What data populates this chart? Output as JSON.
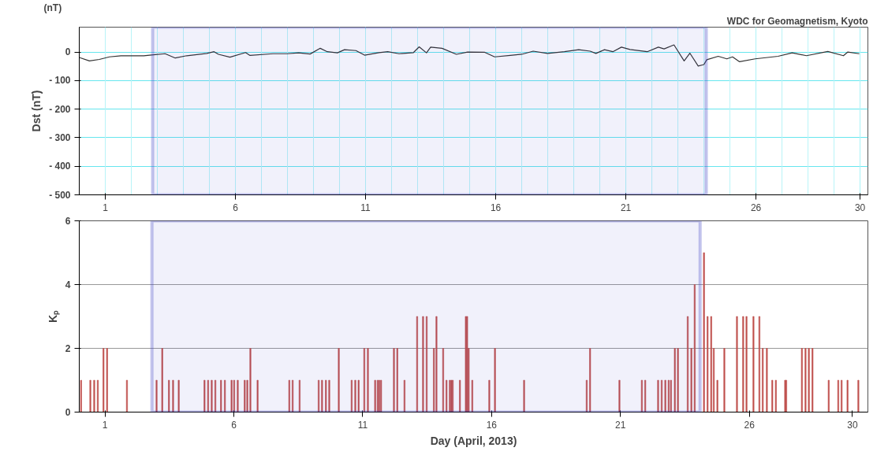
{
  "chart_data": [
    {
      "type": "line",
      "ylabel": "Dst (nT)",
      "annotations": [
        "WDC for Geomagnetism, Kyoto",
        "(nT)"
      ],
      "xlim": [
        0,
        30.3
      ],
      "ylim": [
        -500,
        87
      ],
      "xticks": [
        1,
        6,
        11,
        16,
        21,
        26,
        30
      ],
      "yticks": [
        0,
        {
          "value": -100,
          "label": "- 100"
        },
        {
          "value": -200,
          "label": "- 200"
        },
        {
          "value": -300,
          "label": "- 300"
        },
        {
          "value": -400,
          "label": "- 400"
        },
        {
          "value": -500,
          "label": "- 500"
        }
      ],
      "grid": true,
      "marker": "none",
      "line_style": "solid",
      "bands": [
        {
          "axis": "x",
          "from": 2.82,
          "to": 24.09,
          "color": "#3b3fc4"
        }
      ],
      "series": [
        {
          "color": "#333333",
          "x": [
            0.0,
            0.39,
            0.77,
            1.16,
            1.6,
            2.48,
            2.92,
            3.3,
            3.69,
            4.13,
            4.9,
            5.18,
            5.35,
            5.79,
            6.39,
            6.56,
            7.44,
            7.99,
            8.43,
            8.87,
            9.26,
            9.53,
            9.92,
            10.19,
            10.63,
            10.96,
            11.52,
            11.85,
            12.29,
            12.84,
            13.06,
            13.34,
            13.5,
            13.94,
            14.49,
            14.92,
            15.58,
            15.96,
            16.56,
            17.0,
            17.44,
            17.99,
            18.64,
            19.19,
            19.63,
            19.85,
            20.18,
            20.5,
            20.83,
            21.16,
            21.82,
            22.25,
            22.47,
            22.85,
            23.24,
            23.46,
            23.78,
            24.0,
            24.11,
            24.55,
            24.88,
            25.1,
            25.37,
            25.97,
            26.85,
            27.39,
            27.94,
            28.76,
            29.36,
            29.53,
            29.97
          ],
          "values": [
            -19,
            -31,
            -26,
            -17,
            -13,
            -13,
            -9,
            -6,
            -21,
            -13,
            -5,
            1,
            -8,
            -18,
            -2,
            -12,
            -6,
            -6,
            -3,
            -7,
            13,
            1,
            -3,
            8,
            5,
            -11,
            -2,
            1,
            -6,
            -2,
            18,
            -3,
            17,
            13,
            -8,
            0,
            -1,
            -17,
            -12,
            -8,
            3,
            -5,
            1,
            8,
            3,
            -5,
            8,
            1,
            17,
            9,
            1,
            17,
            11,
            25,
            -31,
            -4,
            -49,
            -44,
            -27,
            -15,
            -24,
            -17,
            -34,
            -24,
            -15,
            -3,
            -13,
            2,
            -13,
            0,
            -6
          ]
        }
      ]
    },
    {
      "type": "bar",
      "ylabel": "Kₚ",
      "xlabel": "Day (April, 2013)",
      "xlim": [
        0,
        30.6
      ],
      "ylim": [
        0,
        6
      ],
      "xticks": [
        1,
        6,
        11,
        16,
        21,
        26,
        30
      ],
      "yticks": [
        0,
        2,
        4,
        6
      ],
      "grid": "y",
      "bands": [
        {
          "axis": "x",
          "from": 2.82,
          "to": 24.09,
          "color": "#3b3fc4"
        }
      ],
      "series": [
        {
          "color": "#c0504d",
          "x": [
            0.07,
            0.43,
            0.58,
            0.72,
            0.94,
            1.08,
            1.85,
            3.0,
            3.22,
            3.48,
            3.64,
            3.86,
            4.86,
            5.0,
            5.14,
            5.28,
            5.5,
            5.65,
            5.91,
            6.01,
            6.15,
            6.42,
            6.52,
            6.64,
            6.92,
            8.15,
            8.28,
            8.55,
            9.29,
            9.42,
            9.57,
            9.7,
            10.07,
            10.57,
            10.71,
            10.84,
            11.06,
            11.2,
            11.48,
            11.58,
            11.64,
            11.71,
            12.21,
            12.34,
            12.62,
            13.11,
            13.34,
            13.48,
            13.76,
            13.86,
            14.12,
            14.25,
            14.38,
            14.44,
            14.49,
            14.77,
            15.0,
            15.05,
            15.11,
            15.25,
            15.91,
            16.13,
            17.26,
            19.69,
            19.82,
            20.96,
            21.83,
            21.96,
            22.46,
            22.6,
            22.74,
            22.87,
            22.96,
            23.11,
            23.23,
            23.61,
            23.75,
            23.88,
            24.24,
            24.38,
            24.52,
            24.62,
            24.76,
            25.03,
            25.52,
            25.76,
            25.89,
            26.16,
            26.39,
            26.52,
            26.68,
            26.89,
            27.03,
            27.39,
            27.43,
            28.04,
            28.18,
            28.31,
            28.45,
            29.08,
            29.45,
            29.58,
            29.81,
            30.23
          ],
          "values": [
            1,
            1,
            1,
            1,
            2,
            2,
            1,
            1,
            2,
            1,
            1,
            1,
            1,
            1,
            1,
            1,
            1,
            1,
            1,
            1,
            1,
            1,
            1,
            2,
            1,
            1,
            1,
            1,
            1,
            1,
            1,
            1,
            2,
            1,
            1,
            1,
            2,
            2,
            1,
            1,
            1,
            1,
            2,
            2,
            1,
            3,
            3,
            3,
            2,
            3,
            2,
            1,
            1,
            1,
            1,
            1,
            3,
            3,
            2,
            1,
            1,
            2,
            1,
            1,
            2,
            1,
            1,
            1,
            1,
            1,
            1,
            1,
            1,
            2,
            2,
            3,
            2,
            4,
            5,
            3,
            3,
            2,
            1,
            2,
            3,
            3,
            3,
            3,
            3,
            2,
            2,
            1,
            1,
            1,
            1,
            2,
            2,
            2,
            2,
            1,
            1,
            1,
            1,
            1
          ]
        }
      ]
    }
  ]
}
